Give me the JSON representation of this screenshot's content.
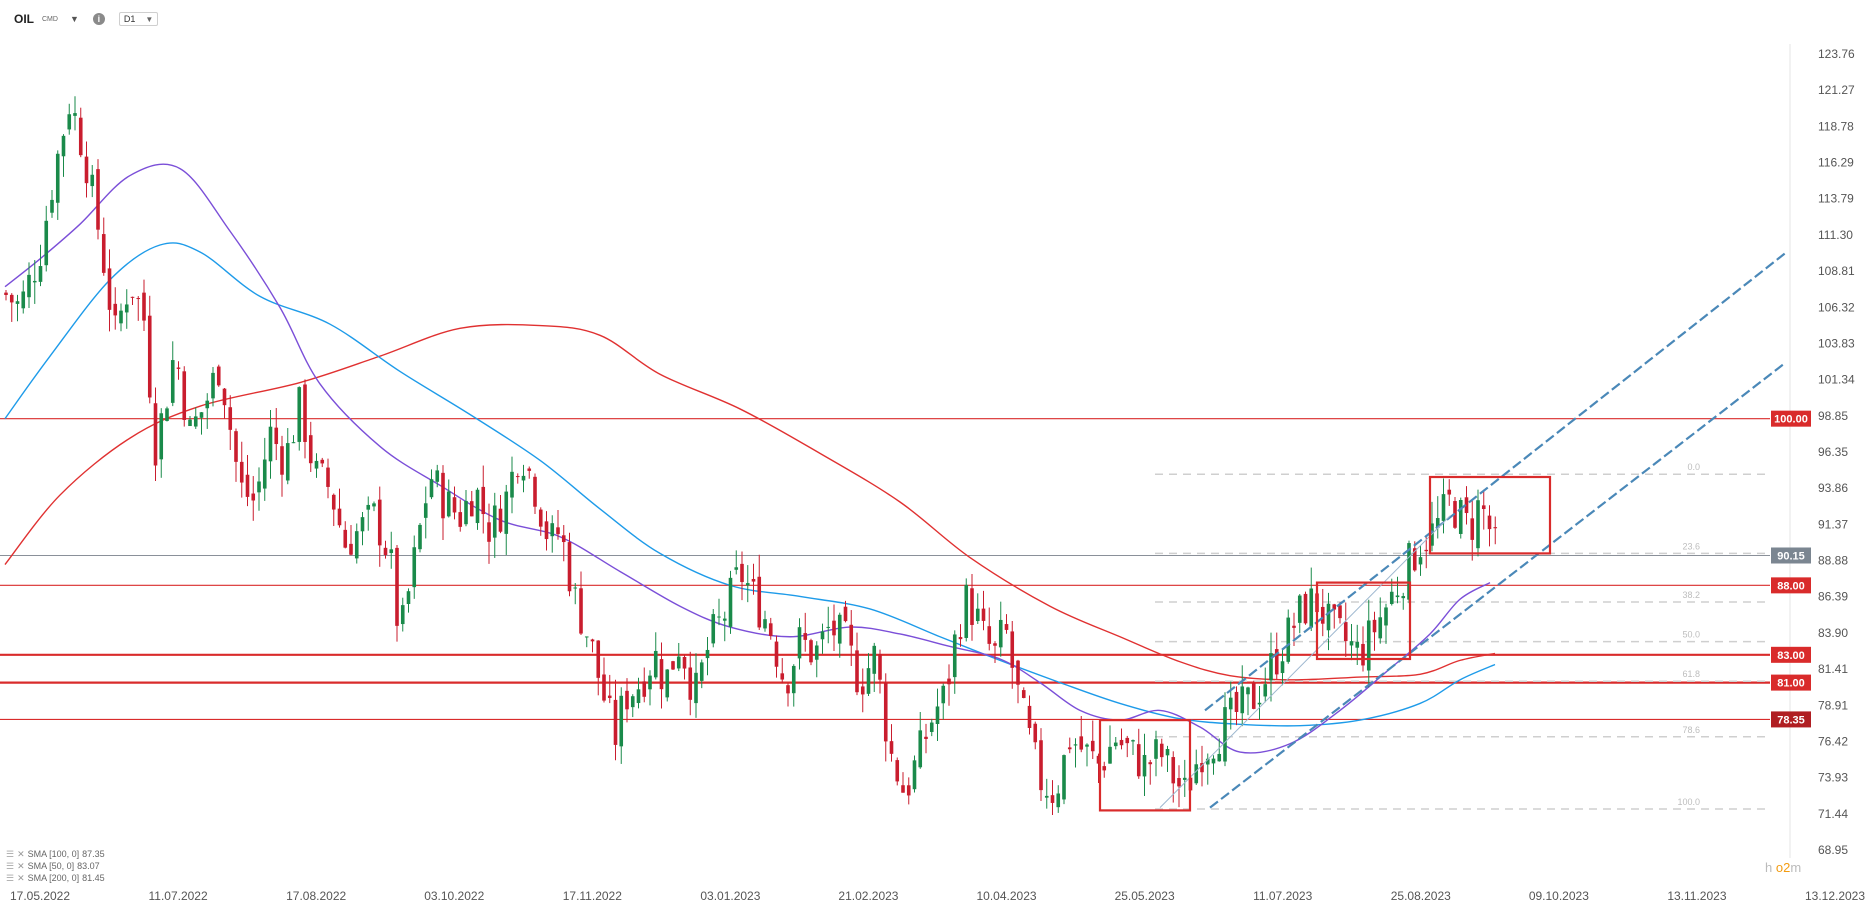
{
  "header": {
    "symbol": "OIL",
    "symbol_sub": "CMD",
    "info_label": "i",
    "timeframe": "D1"
  },
  "indicators": [
    {
      "label": "SMA [100, 0]",
      "value": "87.35",
      "color": "#1e9be9"
    },
    {
      "label": "SMA [50, 0]",
      "value": "83.07",
      "color": "#7b4fd8"
    },
    {
      "label": "SMA [200, 0]",
      "value": "81.45",
      "color": "#e03131"
    }
  ],
  "watermark": {
    "prefix": "h",
    "accent": "o2",
    "suffix": "m"
  },
  "colors": {
    "up": "#1a8a4a",
    "down": "#c91d2e",
    "sma100": "#1e9be9",
    "sma50": "#7b4fd8",
    "sma200": "#e03131",
    "channel": "#4a88b8",
    "box": "#d92b2b"
  },
  "chart_data": {
    "type": "candlestick",
    "symbol": "OIL",
    "timeframe": "D1",
    "ylim": [
      68.95,
      126.25
    ],
    "y_ticks": [
      "123.76",
      "121.27",
      "118.78",
      "116.29",
      "113.79",
      "111.30",
      "108.81",
      "106.32",
      "103.83",
      "101.34",
      "98.85",
      "96.35",
      "93.86",
      "91.37",
      "88.88",
      "86.39",
      "83.90",
      "81.41",
      "78.91",
      "76.42",
      "73.93",
      "71.44",
      "68.95"
    ],
    "x_ticks": [
      "17.05.2022",
      "11.07.2022",
      "17.08.2022",
      "03.10.2022",
      "17.11.2022",
      "03.01.2023",
      "21.02.2023",
      "10.04.2023",
      "25.05.2023",
      "11.07.2023",
      "25.08.2023",
      "09.10.2023",
      "13.11.2023",
      "13.12.2023"
    ],
    "current_price": {
      "value": 90.15,
      "label": "90.15"
    },
    "horizontal_levels": [
      {
        "value": 100.0,
        "label": "100.00",
        "bold": false
      },
      {
        "value": 88.0,
        "label": "88.00",
        "bold": false
      },
      {
        "value": 83.0,
        "label": "83.00",
        "bold": true
      },
      {
        "value": 81.0,
        "label": "81.00",
        "bold": true
      },
      {
        "value": 78.35,
        "label": "78.35",
        "bold": false
      }
    ],
    "fibonacci": [
      {
        "level": "0.0",
        "value": 96.0
      },
      {
        "level": "23.6",
        "value": 90.3
      },
      {
        "level": "38.2",
        "value": 86.8
      },
      {
        "level": "50.0",
        "value": 83.95
      },
      {
        "level": "61.8",
        "value": 81.1
      },
      {
        "level": "78.6",
        "value": 77.1
      },
      {
        "level": "100.0",
        "value": 71.9
      }
    ],
    "series": [
      {
        "name": "SMA [100, 0]",
        "color": "#1e9be9"
      },
      {
        "name": "SMA [50, 0]",
        "color": "#7b4fd8"
      },
      {
        "name": "SMA [200, 0]",
        "color": "#e03131"
      }
    ],
    "grid": false
  }
}
